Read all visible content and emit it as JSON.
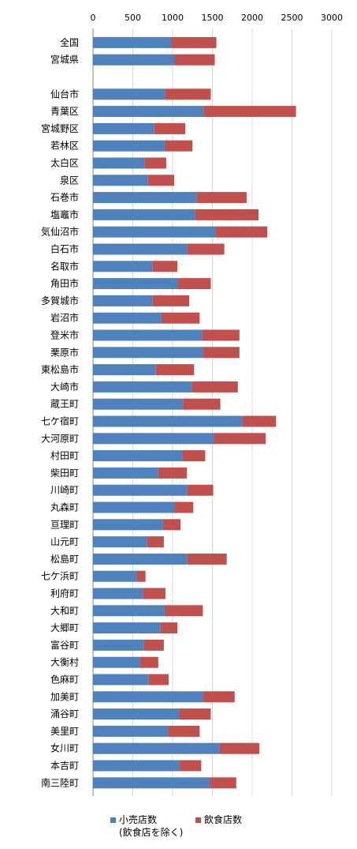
{
  "chart_data": {
    "type": "bar",
    "stacked": true,
    "orientation": "horizontal",
    "xlim": [
      0,
      3000
    ],
    "x_ticks": [
      "0",
      "500",
      "1000",
      "1500",
      "2000",
      "2500",
      "3000"
    ],
    "x_axis_position": "top",
    "grid": true,
    "legend_position": "bottom",
    "categories": [
      "全国",
      "宮城県",
      "",
      "仙台市",
      "青葉区",
      "宮城野区",
      "若林区",
      "太白区",
      "泉区",
      "石巻市",
      "塩竈市",
      "気仙沼市",
      "白石市",
      "名取市",
      "角田市",
      "多賀城市",
      "岩沼市",
      "登米市",
      "栗原市",
      "東松島市",
      "大崎市",
      "蔵王町",
      "七ケ宿町",
      "大河原町",
      "村田町",
      "柴田町",
      "川崎町",
      "丸森町",
      "亘理町",
      "山元町",
      "松島町",
      "七ケ浜町",
      "利府町",
      "大和町",
      "大郷町",
      "富谷町",
      "大衡村",
      "色麻町",
      "加美町",
      "涌谷町",
      "美里町",
      "女川町",
      "本吉町",
      "南三陸町"
    ],
    "series": [
      {
        "name": "小売店数",
        "name_note": "(飲食店を除く)",
        "color": "#4F81BD",
        "values": [
          980,
          1020,
          null,
          910,
          1390,
          770,
          900,
          650,
          690,
          1300,
          1280,
          1540,
          1180,
          750,
          1060,
          750,
          860,
          1370,
          1380,
          790,
          1240,
          1130,
          1880,
          1520,
          1120,
          820,
          1180,
          1030,
          880,
          680,
          1180,
          550,
          630,
          900,
          850,
          640,
          590,
          700,
          1380,
          1080,
          950,
          1590,
          1090,
          1470
        ]
      },
      {
        "name": "飲食店数",
        "color": "#C0504D",
        "values": [
          570,
          510,
          null,
          570,
          1160,
          390,
          350,
          270,
          330,
          630,
          800,
          650,
          470,
          310,
          420,
          460,
          480,
          470,
          460,
          480,
          580,
          470,
          420,
          650,
          290,
          360,
          330,
          230,
          220,
          210,
          500,
          110,
          280,
          480,
          210,
          250,
          230,
          250,
          400,
          400,
          390,
          500,
          270,
          330
        ]
      }
    ]
  }
}
